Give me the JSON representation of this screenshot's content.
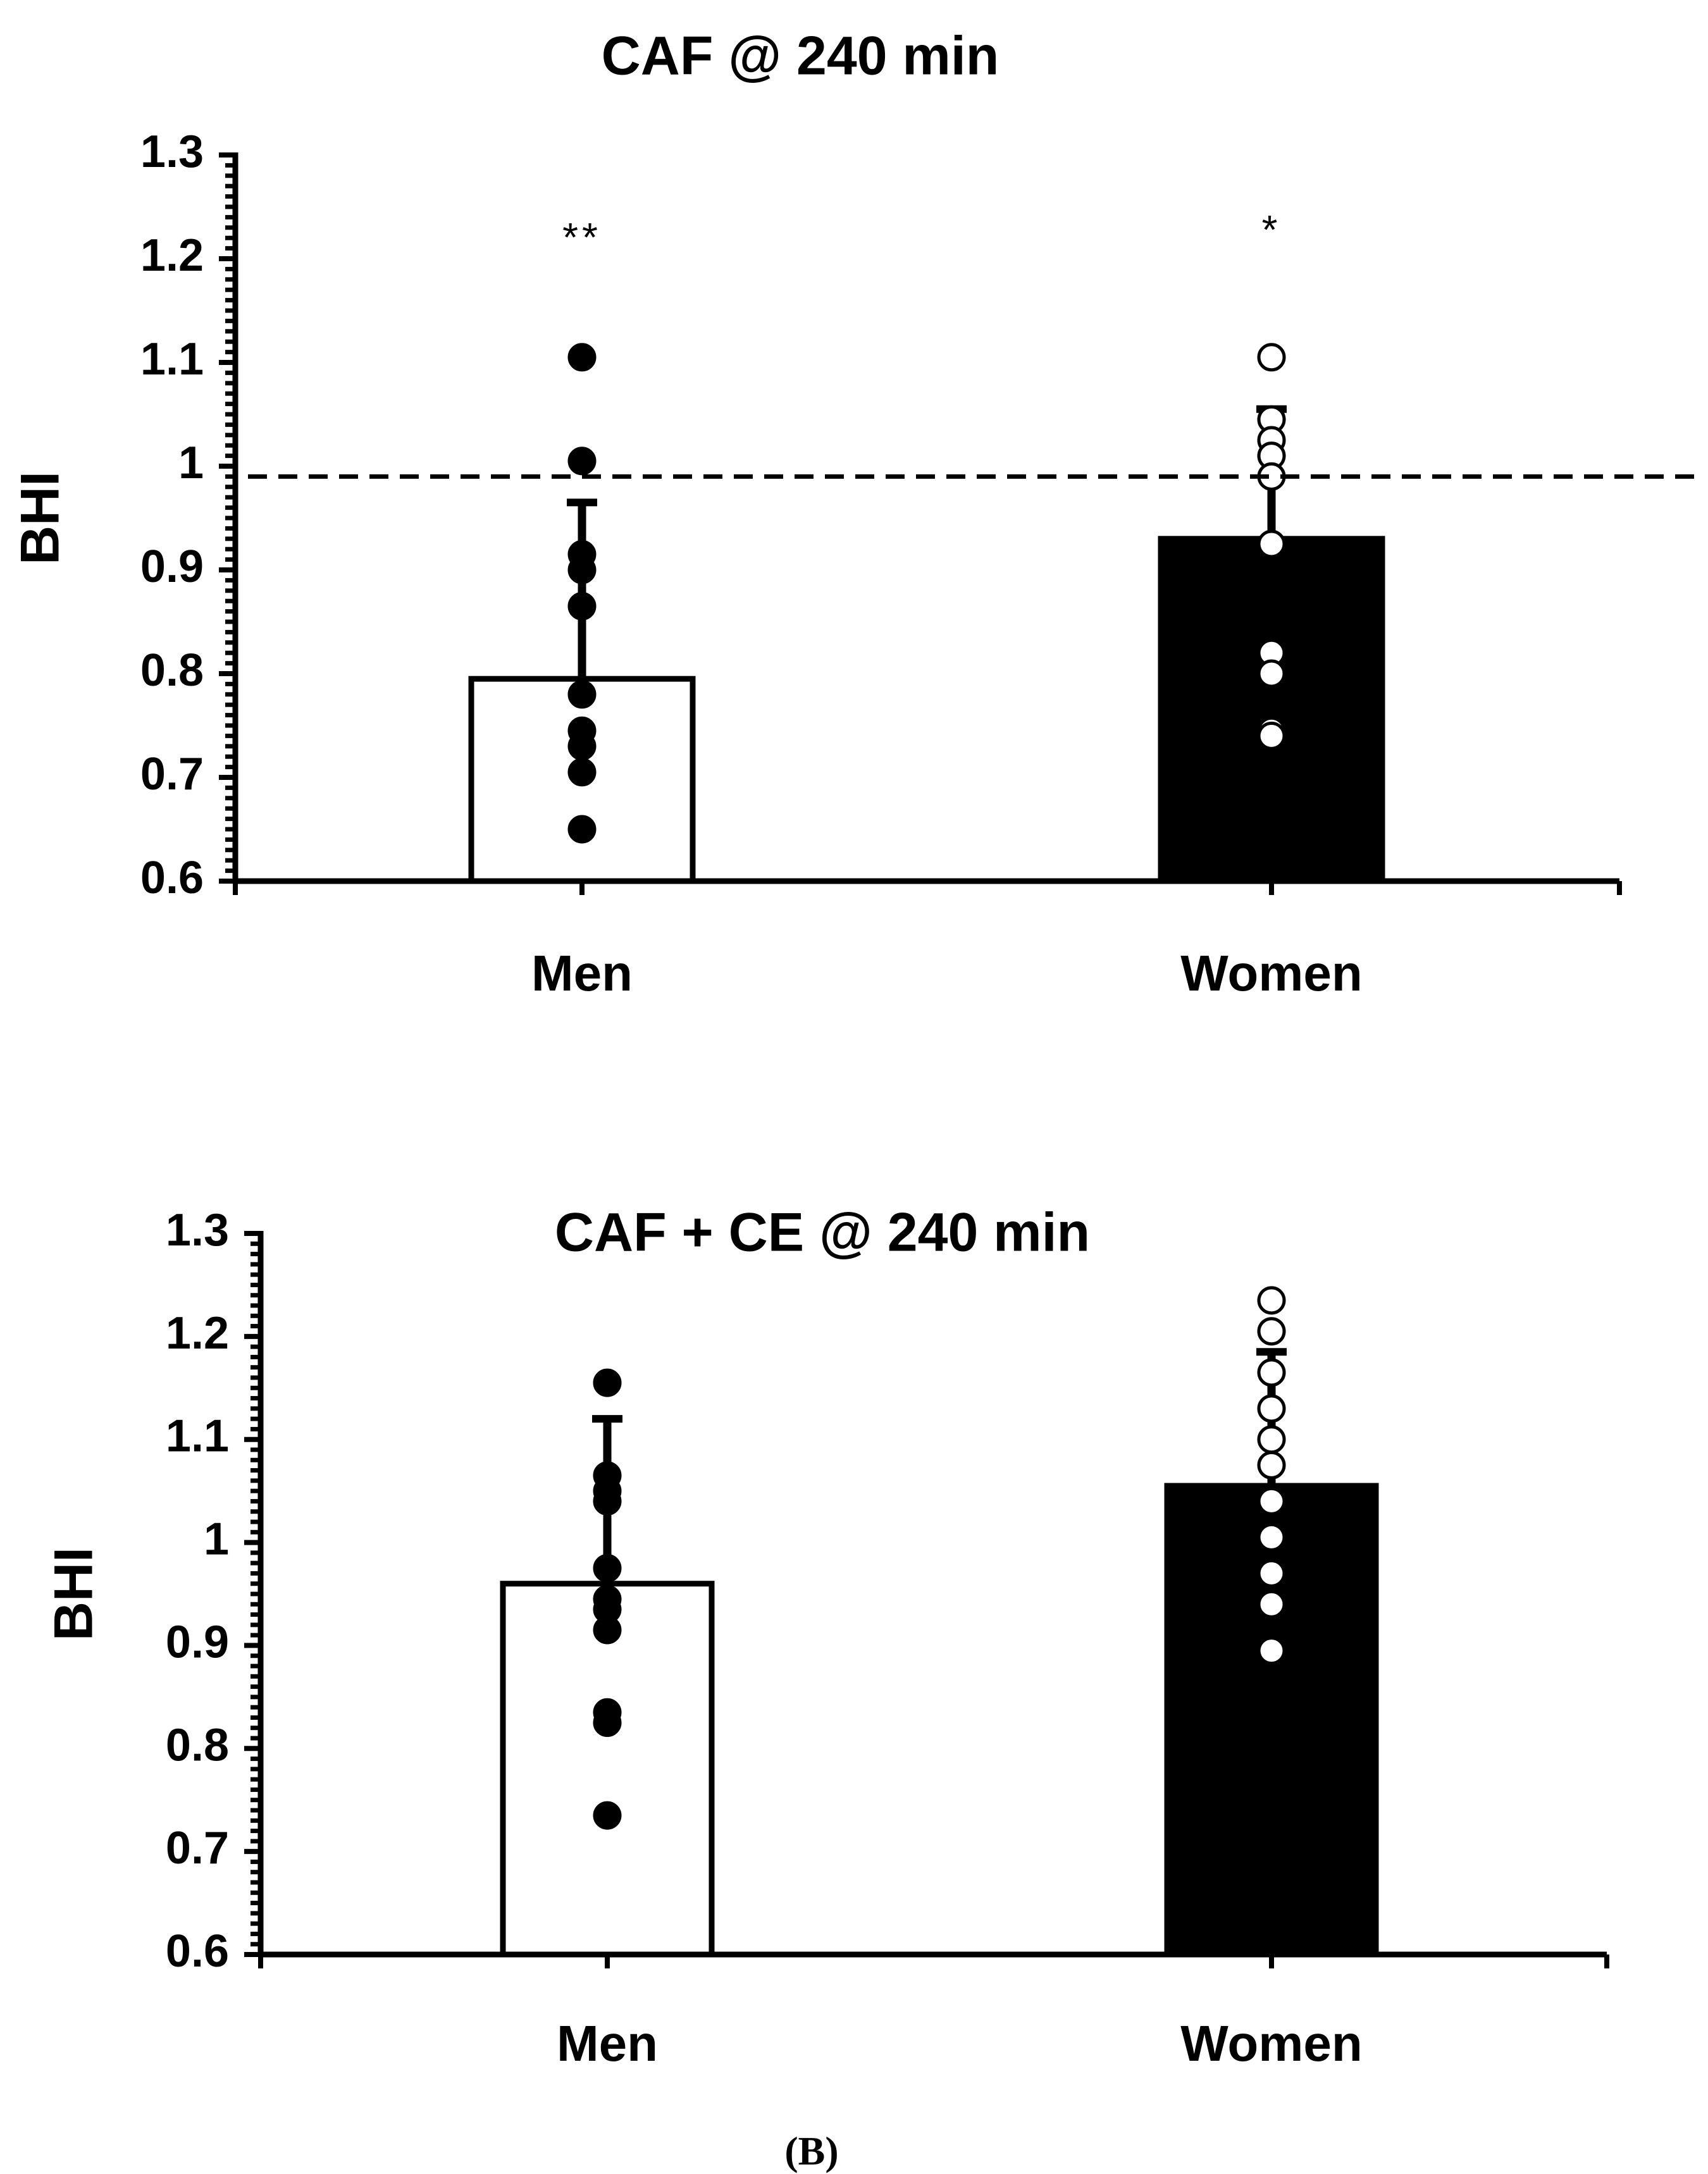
{
  "panel_label": "(B)",
  "chart_data": [
    {
      "type": "bar",
      "title": "CAF @ 240 min",
      "ylabel": "BHI",
      "xlabel": "",
      "ylim": [
        0.6,
        1.3
      ],
      "yticks": [
        "0.6",
        "0.7",
        "0.8",
        "0.9",
        "1",
        "1.1",
        "1.2",
        "1.3"
      ],
      "categories": [
        "Men",
        "Women"
      ],
      "values": [
        0.795,
        0.93
      ],
      "error_upper": [
        0.965,
        1.055
      ],
      "bar_fill": [
        "#ffffff",
        "#000000"
      ],
      "point_fill": [
        "#000000",
        "#ffffff"
      ],
      "points": [
        [
          1.105,
          1.005,
          0.915,
          0.9,
          0.865,
          0.78,
          0.745,
          0.73,
          0.705,
          0.65
        ],
        [
          1.105,
          1.045,
          1.025,
          1.01,
          0.99,
          0.925,
          0.82,
          0.8,
          0.745,
          0.74
        ]
      ],
      "reference_line": 0.99,
      "significance": [
        "**",
        "*"
      ]
    },
    {
      "type": "bar",
      "title": "CAF + CE @ 240 min",
      "ylabel": "BHI",
      "xlabel": "",
      "ylim": [
        0.6,
        1.3
      ],
      "yticks": [
        "0.6",
        "0.7",
        "0.8",
        "0.9",
        "1",
        "1.1",
        "1.2",
        "1.3"
      ],
      "categories": [
        "Men",
        "Women"
      ],
      "values": [
        0.96,
        1.055
      ],
      "error_upper": [
        1.12,
        1.185
      ],
      "bar_fill": [
        "#ffffff",
        "#000000"
      ],
      "point_fill": [
        "#000000",
        "#ffffff"
      ],
      "points": [
        [
          1.155,
          1.065,
          1.05,
          1.04,
          0.975,
          0.945,
          0.935,
          0.915,
          0.835,
          0.825,
          0.735
        ],
        [
          1.235,
          1.205,
          1.165,
          1.13,
          1.1,
          1.075,
          1.04,
          1.005,
          0.97,
          0.94,
          0.895
        ]
      ],
      "reference_line": null,
      "significance": []
    }
  ]
}
